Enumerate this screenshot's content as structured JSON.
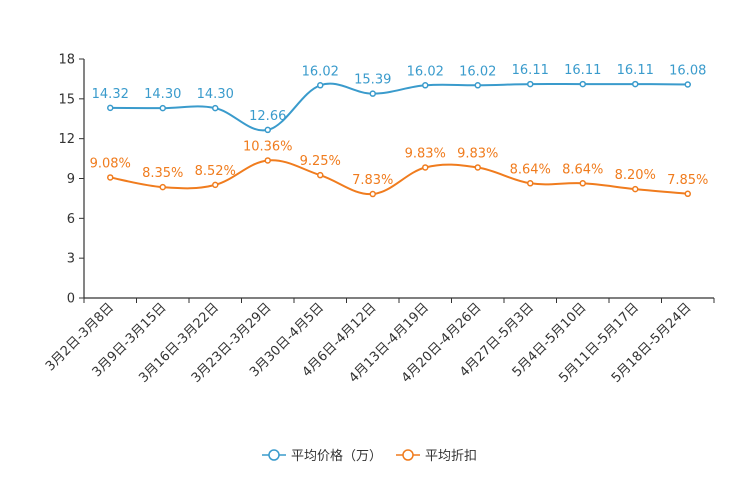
{
  "chart_data": {
    "type": "line",
    "title": "",
    "xlabel": "",
    "ylabel": "",
    "ylim": [
      0,
      18
    ],
    "yticks": [
      0,
      3,
      6,
      9,
      12,
      15,
      18
    ],
    "grid": false,
    "legend_position": "bottom",
    "categories": [
      "3月2日-3月8日",
      "3月9日-3月15日",
      "3月16日-3月22日",
      "3月23日-3月29日",
      "3月30日-4月5日",
      "4月6日-4月12日",
      "4月13日-4月19日",
      "4月20日-4月26日",
      "4月27日-5月3日",
      "5月4日-5月10日",
      "5月11日-5月17日",
      "5月18日-5月24日"
    ],
    "series": [
      {
        "name": "平均价格（万）",
        "color": "#3a9bcc",
        "values": [
          14.32,
          14.3,
          14.3,
          12.66,
          16.02,
          15.39,
          16.02,
          16.02,
          16.11,
          16.11,
          16.11,
          16.08
        ],
        "labels": [
          "14.32",
          "14.30",
          "14.30",
          "12.66",
          "16.02",
          "15.39",
          "16.02",
          "16.02",
          "16.11",
          "16.11",
          "16.11",
          "16.08"
        ]
      },
      {
        "name": "平均折扣",
        "color": "#f07c1e",
        "values": [
          9.08,
          8.35,
          8.52,
          10.36,
          9.25,
          7.83,
          9.83,
          9.83,
          8.64,
          8.64,
          8.2,
          7.85
        ],
        "labels": [
          "9.08%",
          "8.35%",
          "8.52%",
          "10.36%",
          "9.25%",
          "7.83%",
          "9.83%",
          "9.83%",
          "8.64%",
          "8.64%",
          "8.20%",
          "7.85%"
        ]
      }
    ]
  }
}
